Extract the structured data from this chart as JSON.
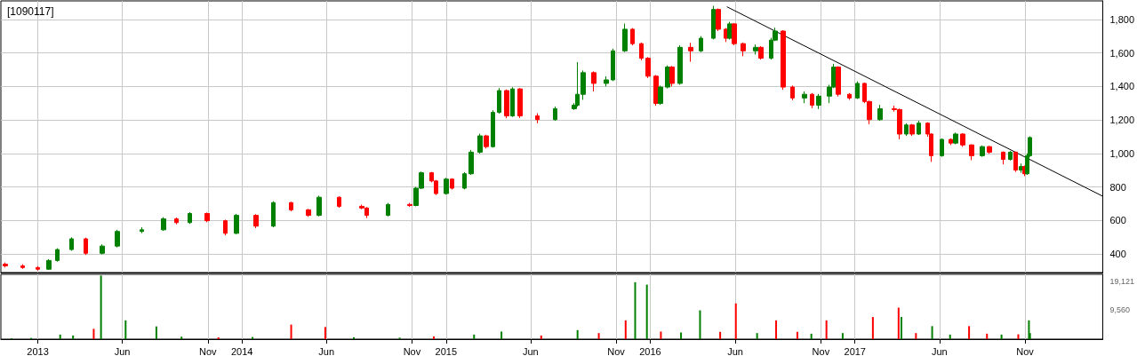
{
  "chart_data": [
    {
      "type": "candlestick",
      "title": "[1090117]",
      "xlim": [
        "2012-10-27",
        "2018-03-20"
      ],
      "xticks": [
        {
          "value": "2013-01-01",
          "label": null
        },
        {
          "value": "2013-06-01",
          "label": null
        },
        {
          "value": "2013-11-01",
          "label": null
        },
        {
          "value": "2014-01-01",
          "label": null
        },
        {
          "value": "2014-06-01",
          "label": null
        },
        {
          "value": "2014-11-01",
          "label": null
        },
        {
          "value": "2015-01-01",
          "label": null
        },
        {
          "value": "2015-06-01",
          "label": null
        },
        {
          "value": "2015-11-01",
          "label": null
        },
        {
          "value": "2016-01-01",
          "label": null
        },
        {
          "value": "2016-06-01",
          "label": null
        },
        {
          "value": "2016-11-01",
          "label": null
        },
        {
          "value": "2017-01-01",
          "label": null
        },
        {
          "value": "2017-06-01",
          "label": null
        },
        {
          "value": "2017-11-01",
          "label": null
        }
      ],
      "ylim": [
        290,
        1910
      ],
      "yticks": [
        400,
        600,
        800,
        {
          "value": 1000,
          "label": "1,000"
        },
        {
          "value": 1200,
          "label": "1,200"
        },
        {
          "value": 1400,
          "label": "1,400"
        },
        {
          "value": 1600,
          "label": "1,600"
        },
        {
          "value": 1800,
          "label": "1,800"
        }
      ],
      "grid": true,
      "tick_labels": "y",
      "x": [
        "2012-11-04",
        "2012-12-05",
        "2013-01-01",
        "2013-01-21",
        "2013-02-05",
        "2013-03-02",
        "2013-03-28",
        "2013-04-26",
        "2013-05-23",
        "2013-07-06",
        "2013-08-14",
        "2013-09-06",
        "2013-09-30",
        "2013-10-31",
        "2013-12-02",
        "2013-12-22",
        "2014-01-26",
        "2014-02-26",
        "2014-03-30",
        "2014-04-30",
        "2014-05-19",
        "2014-06-24",
        "2014-08-03",
        "2014-08-12",
        "2014-09-19",
        "2014-10-28",
        "2014-11-08",
        "2014-11-18",
        "2014-12-06",
        "2014-12-14",
        "2015-01-01",
        "2015-01-12",
        "2015-02-03",
        "2015-02-15",
        "2015-03-03",
        "2015-03-14",
        "2015-03-26",
        "2015-04-06",
        "2015-04-19",
        "2015-04-30",
        "2015-05-13",
        "2015-06-13",
        "2015-07-15",
        "2015-08-18",
        "2015-08-24",
        "2015-09-03",
        "2015-09-22",
        "2015-10-14",
        "2015-10-26",
        "2015-11-17",
        "2015-11-30",
        "2015-12-16",
        "2015-12-28",
        "2016-01-11",
        "2016-01-19",
        "2016-02-01",
        "2016-02-09",
        "2016-02-23",
        "2016-03-13",
        "2016-04-01",
        "2016-04-23",
        "2016-05-02",
        "2016-05-15",
        "2016-05-22",
        "2016-05-30",
        "2016-06-15",
        "2016-07-07",
        "2016-07-17",
        "2016-08-04",
        "2016-08-11",
        "2016-08-26",
        "2016-09-11",
        "2016-10-03",
        "2016-10-16",
        "2016-10-28",
        "2016-11-16",
        "2016-11-24",
        "2016-12-02",
        "2016-12-22",
        "2017-01-05",
        "2017-01-18",
        "2017-01-27",
        "2017-02-15",
        "2017-03-12",
        "2017-03-22",
        "2017-04-03",
        "2017-04-13",
        "2017-04-25",
        "2017-05-11",
        "2017-05-17",
        "2017-06-05",
        "2017-06-21",
        "2017-06-30",
        "2017-07-13",
        "2017-07-29",
        "2017-08-17",
        "2017-08-29",
        "2017-09-23",
        "2017-10-06",
        "2017-10-15",
        "2017-10-25",
        "2017-10-31",
        "2017-11-05",
        "2017-11-10"
      ],
      "ohlc": [
        [
          340,
          350,
          320,
          330
        ],
        [
          330,
          340,
          312,
          320
        ],
        [
          320,
          328,
          302,
          310
        ],
        [
          310,
          370,
          305,
          362
        ],
        [
          362,
          435,
          355,
          427
        ],
        [
          427,
          500,
          420,
          491
        ],
        [
          491,
          498,
          395,
          405
        ],
        [
          405,
          458,
          398,
          448
        ],
        [
          448,
          545,
          440,
          535
        ],
        [
          535,
          560,
          525,
          545
        ],
        [
          545,
          620,
          538,
          610
        ],
        [
          610,
          618,
          578,
          588
        ],
        [
          588,
          650,
          580,
          642
        ],
        [
          642,
          648,
          590,
          599
        ],
        [
          599,
          605,
          512,
          524
        ],
        [
          524,
          640,
          518,
          631
        ],
        [
          631,
          638,
          555,
          567
        ],
        [
          567,
          715,
          560,
          707
        ],
        [
          707,
          712,
          655,
          664
        ],
        [
          664,
          670,
          622,
          631
        ],
        [
          631,
          748,
          625,
          739
        ],
        [
          739,
          744,
          676,
          685
        ],
        [
          685,
          695,
          668,
          675
        ],
        [
          675,
          680,
          615,
          631
        ],
        [
          631,
          705,
          625,
          696
        ],
        [
          696,
          705,
          682,
          690
        ],
        [
          690,
          800,
          685,
          793
        ],
        [
          793,
          892,
          788,
          885
        ],
        [
          885,
          890,
          828,
          836
        ],
        [
          836,
          842,
          752,
          761
        ],
        [
          761,
          855,
          755,
          847
        ],
        [
          847,
          852,
          785,
          793
        ],
        [
          793,
          888,
          786,
          879
        ],
        [
          879,
          1020,
          872,
          1008
        ],
        [
          1008,
          1118,
          1000,
          1105
        ],
        [
          1105,
          1112,
          1030,
          1041
        ],
        [
          1041,
          1258,
          1035,
          1245
        ],
        [
          1245,
          1390,
          1238,
          1375
        ],
        [
          1375,
          1382,
          1210,
          1224
        ],
        [
          1224,
          1395,
          1218,
          1385
        ],
        [
          1385,
          1390,
          1212,
          1224
        ],
        [
          1224,
          1240,
          1180,
          1202
        ],
        [
          1202,
          1280,
          1195,
          1267
        ],
        [
          1267,
          1300,
          1260,
          1288
        ],
        [
          1288,
          1545,
          1280,
          1353
        ],
        [
          1353,
          1495,
          1320,
          1482
        ],
        [
          1482,
          1490,
          1370,
          1418
        ],
        [
          1418,
          1460,
          1400,
          1439
        ],
        [
          1439,
          1625,
          1432,
          1612
        ],
        [
          1612,
          1775,
          1605,
          1741
        ],
        [
          1741,
          1748,
          1645,
          1655
        ],
        [
          1655,
          1662,
          1555,
          1568
        ],
        [
          1568,
          1575,
          1450,
          1461
        ],
        [
          1461,
          1468,
          1285,
          1299
        ],
        [
          1299,
          1405,
          1290,
          1396
        ],
        [
          1396,
          1525,
          1388,
          1515
        ],
        [
          1515,
          1522,
          1400,
          1418
        ],
        [
          1418,
          1645,
          1410,
          1633
        ],
        [
          1633,
          1660,
          1547,
          1612
        ],
        [
          1612,
          1700,
          1605,
          1687
        ],
        [
          1687,
          1880,
          1680,
          1859
        ],
        [
          1859,
          1865,
          1730,
          1741
        ],
        [
          1741,
          1748,
          1665,
          1687
        ],
        [
          1687,
          1785,
          1680,
          1773
        ],
        [
          1773,
          1778,
          1645,
          1655
        ],
        [
          1655,
          1662,
          1580,
          1612
        ],
        [
          1612,
          1650,
          1590,
          1633
        ],
        [
          1633,
          1640,
          1560,
          1568
        ],
        [
          1568,
          1690,
          1560,
          1676
        ],
        [
          1676,
          1750,
          1670,
          1730
        ],
        [
          1730,
          1735,
          1380,
          1396
        ],
        [
          1396,
          1405,
          1318,
          1331
        ],
        [
          1331,
          1370,
          1300,
          1353
        ],
        [
          1353,
          1360,
          1270,
          1288
        ],
        [
          1288,
          1355,
          1265,
          1342
        ],
        [
          1342,
          1410,
          1300,
          1396
        ],
        [
          1396,
          1535,
          1390,
          1515
        ],
        [
          1515,
          1520,
          1340,
          1353
        ],
        [
          1353,
          1360,
          1320,
          1331
        ],
        [
          1331,
          1430,
          1325,
          1418
        ],
        [
          1418,
          1422,
          1300,
          1310
        ],
        [
          1310,
          1315,
          1175,
          1202
        ],
        [
          1202,
          1290,
          1195,
          1267
        ],
        [
          1267,
          1285,
          1250,
          1262
        ],
        [
          1262,
          1268,
          1085,
          1116
        ],
        [
          1116,
          1180,
          1105,
          1170
        ],
        [
          1170,
          1176,
          1105,
          1116
        ],
        [
          1116,
          1195,
          1110,
          1181
        ],
        [
          1181,
          1186,
          1100,
          1116
        ],
        [
          1116,
          1120,
          950,
          987
        ],
        [
          987,
          1090,
          980,
          1084
        ],
        [
          1084,
          1090,
          1050,
          1062
        ],
        [
          1062,
          1125,
          1055,
          1116
        ],
        [
          1116,
          1120,
          1040,
          1051
        ],
        [
          1051,
          1055,
          960,
          987
        ],
        [
          987,
          1048,
          980,
          1041
        ],
        [
          1041,
          1046,
          998,
          1008
        ],
        [
          1008,
          1012,
          935,
          965
        ],
        [
          965,
          1015,
          958,
          1008
        ],
        [
          1008,
          1012,
          890,
          901
        ],
        [
          901,
          940,
          885,
          922
        ],
        [
          922,
          928,
          865,
          879
        ],
        [
          879,
          1000,
          872,
          987
        ],
        [
          987,
          1102,
          980,
          1095
        ]
      ],
      "colors": [
        "#ff0000",
        "#ff0000",
        "#ff0000",
        "#008000",
        "#008000",
        "#008000",
        "#ff0000",
        "#008000",
        "#008000",
        "#008000",
        "#008000",
        "#ff0000",
        "#008000",
        "#ff0000",
        "#ff0000",
        "#008000",
        "#ff0000",
        "#008000",
        "#ff0000",
        "#ff0000",
        "#008000",
        "#ff0000",
        "#ff0000",
        "#ff0000",
        "#008000",
        "#ff0000",
        "#008000",
        "#008000",
        "#ff0000",
        "#ff0000",
        "#008000",
        "#ff0000",
        "#008000",
        "#008000",
        "#008000",
        "#ff0000",
        "#008000",
        "#008000",
        "#ff0000",
        "#008000",
        "#ff0000",
        "#ff0000",
        "#008000",
        "#008000",
        "#008000",
        "#008000",
        "#ff0000",
        "#008000",
        "#008000",
        "#008000",
        "#ff0000",
        "#ff0000",
        "#ff0000",
        "#ff0000",
        "#008000",
        "#008000",
        "#ff0000",
        "#008000",
        "#ff0000",
        "#008000",
        "#008000",
        "#ff0000",
        "#ff0000",
        "#008000",
        "#ff0000",
        "#ff0000",
        "#008000",
        "#ff0000",
        "#008000",
        "#008000",
        "#ff0000",
        "#ff0000",
        "#008000",
        "#ff0000",
        "#008000",
        "#008000",
        "#008000",
        "#ff0000",
        "#ff0000",
        "#008000",
        "#ff0000",
        "#ff0000",
        "#008000",
        "#ff0000",
        "#ff0000",
        "#008000",
        "#ff0000",
        "#008000",
        "#ff0000",
        "#ff0000",
        "#008000",
        "#ff0000",
        "#008000",
        "#ff0000",
        "#ff0000",
        "#008000",
        "#ff0000",
        "#ff0000",
        "#008000",
        "#ff0000",
        "#008000",
        "#ff0000",
        "#008000",
        "#008000"
      ],
      "series": [
        {
          "type": "line",
          "x": [
            "2016-05-17",
            "2018-03-20"
          ],
          "values": [
            1875,
            745
          ],
          "color": "#000000"
        }
      ]
    },
    {
      "type": "bar",
      "xlim": [
        "2012-10-27",
        "2018-03-20"
      ],
      "xticks": [
        {
          "value": "2013-01-01",
          "label": "2013"
        },
        {
          "value": "2013-06-01",
          "label": "Jun"
        },
        {
          "value": "2013-11-01",
          "label": "Nov"
        },
        {
          "value": "2014-01-01",
          "label": "2014"
        },
        {
          "value": "2014-06-01",
          "label": "Jun"
        },
        {
          "value": "2014-11-01",
          "label": "Nov"
        },
        {
          "value": "2015-01-01",
          "label": "2015"
        },
        {
          "value": "2015-06-01",
          "label": "Jun"
        },
        {
          "value": "2015-11-01",
          "label": "Nov"
        },
        {
          "value": "2016-01-01",
          "label": "2016"
        },
        {
          "value": "2016-06-01",
          "label": "Jun"
        },
        {
          "value": "2016-11-01",
          "label": "Nov"
        },
        {
          "value": "2017-01-01",
          "label": "2017"
        },
        {
          "value": "2017-06-01",
          "label": "Jun"
        },
        {
          "value": "2017-11-01",
          "label": "Nov"
        }
      ],
      "ylim": [
        0,
        21400
      ],
      "yticks": [
        {
          "value": 9560,
          "label": "9,560"
        },
        {
          "value": 19121,
          "label": "19,121"
        }
      ],
      "grid": "x",
      "x": [
        "2012-11-15",
        "2012-12-20",
        "2013-02-10",
        "2013-03-05",
        "2013-04-11",
        "2013-04-24",
        "2013-06-07",
        "2013-08-01",
        "2013-09-15",
        "2013-11-20",
        "2014-01-20",
        "2014-03-30",
        "2014-05-30",
        "2014-07-20",
        "2014-10-10",
        "2014-12-10",
        "2015-02-20",
        "2015-04-10",
        "2015-06-20",
        "2015-08-24",
        "2015-10-01",
        "2015-11-18",
        "2015-12-05",
        "2015-12-26",
        "2016-01-20",
        "2016-02-25",
        "2016-03-30",
        "2016-05-05",
        "2016-06-02",
        "2016-07-10",
        "2016-08-13",
        "2016-09-20",
        "2016-10-15",
        "2016-11-11",
        "2016-12-10",
        "2017-02-02",
        "2017-03-20",
        "2017-03-25",
        "2017-04-20",
        "2017-05-19",
        "2017-06-20",
        "2017-07-24",
        "2017-08-25",
        "2017-09-20",
        "2017-10-20",
        "2017-11-08",
        "2017-11-10"
      ],
      "values": [
        300,
        400,
        1500,
        1200,
        3400,
        21000,
        6200,
        4200,
        800,
        600,
        700,
        4800,
        4000,
        600,
        500,
        900,
        1500,
        2500,
        1200,
        3000,
        2000,
        6200,
        18800,
        18000,
        2500,
        2200,
        9500,
        2400,
        11800,
        2000,
        6200,
        2400,
        1800,
        6200,
        2000,
        7300,
        10400,
        7300,
        2000,
        4300,
        1500,
        4300,
        1800,
        1500,
        1600,
        6200,
        2000
      ],
      "colors": [
        "#008000",
        "#008000",
        "#008000",
        "#008000",
        "#ff0000",
        "#008000",
        "#008000",
        "#008000",
        "#008000",
        "#ff0000",
        "#008000",
        "#ff0000",
        "#ff0000",
        "#008000",
        "#008000",
        "#ff0000",
        "#008000",
        "#008000",
        "#ff0000",
        "#008000",
        "#ff0000",
        "#ff0000",
        "#008000",
        "#008000",
        "#ff0000",
        "#008000",
        "#008000",
        "#ff0000",
        "#ff0000",
        "#008000",
        "#ff0000",
        "#ff0000",
        "#008000",
        "#ff0000",
        "#008000",
        "#ff0000",
        "#ff0000",
        "#008000",
        "#ff0000",
        "#008000",
        "#008000",
        "#ff0000",
        "#ff0000",
        "#008000",
        "#ff0000",
        "#008000",
        "#008000"
      ]
    }
  ]
}
